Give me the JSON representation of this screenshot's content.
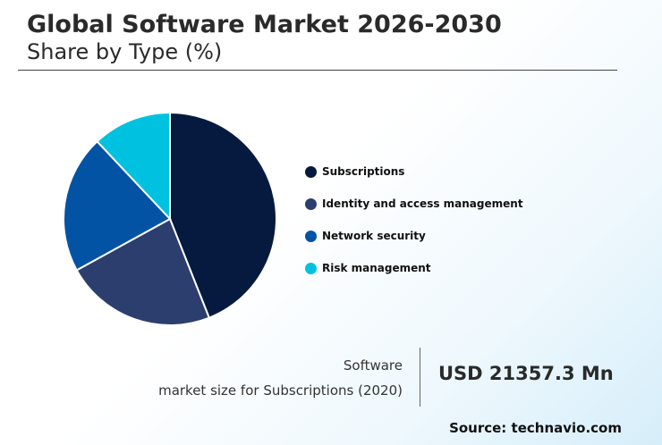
{
  "header": {
    "title": "Global Software Market 2026-2030",
    "subtitle": "Share by Type (%)"
  },
  "chart_data": {
    "type": "pie",
    "categories": [
      "Subscriptions",
      "Identity and access management",
      "Network security",
      "Risk management"
    ],
    "values": [
      44,
      23,
      21,
      12
    ],
    "colors": [
      "#061a40",
      "#2c3e6e",
      "#0353a4",
      "#00c2e0"
    ],
    "legend_position": "right"
  },
  "kpi": {
    "label_line1": "Software",
    "label_line2": "market size for Subscriptions (2020)",
    "value": "USD 21357.3 Mn"
  },
  "footer": {
    "source": "Source: technavio.com"
  }
}
